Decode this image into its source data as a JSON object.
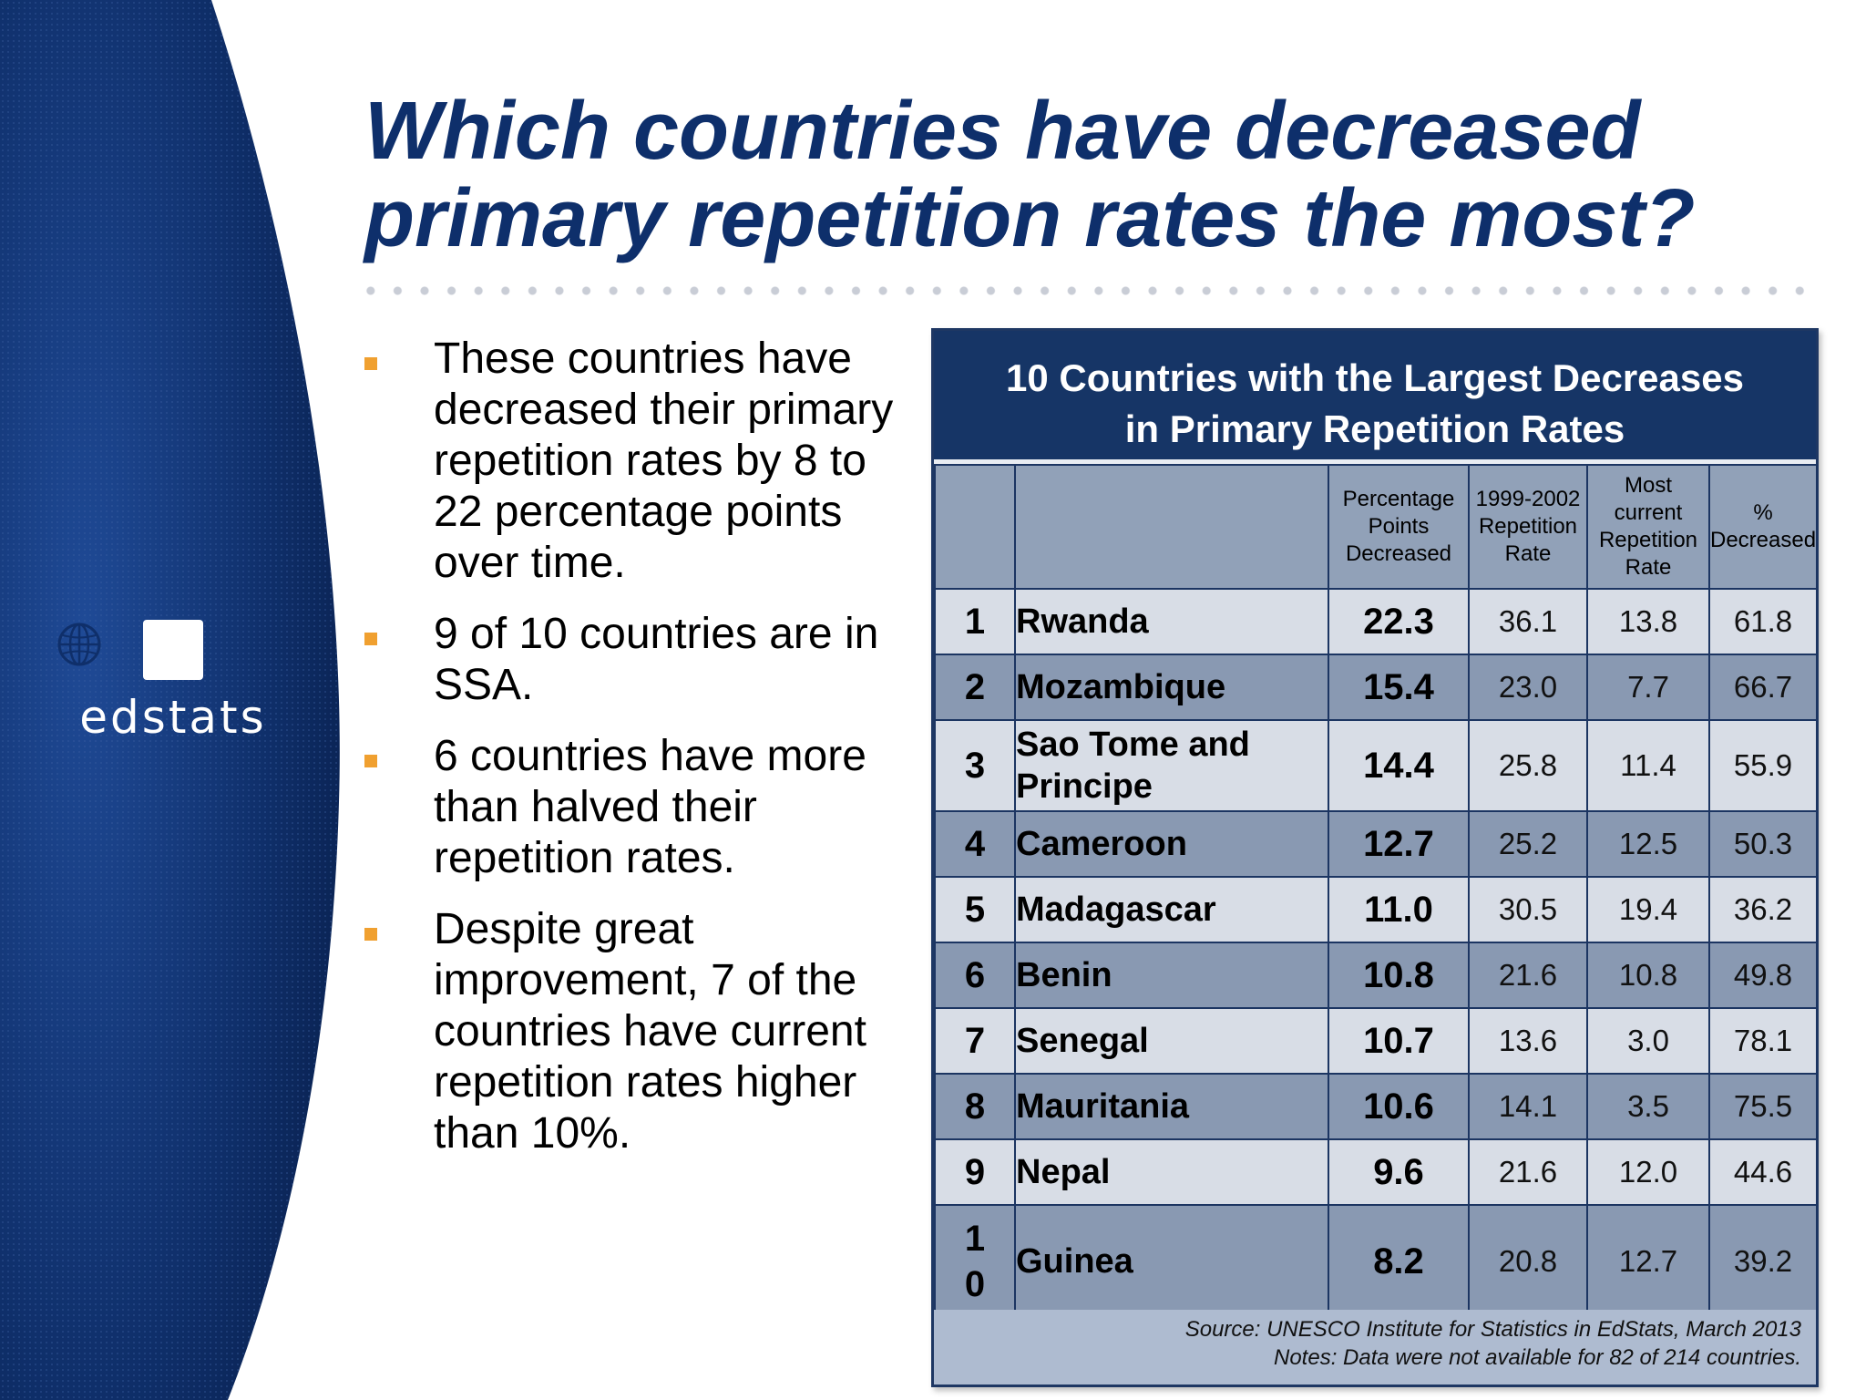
{
  "slide": {
    "title_line1": "Which countries have decreased",
    "title_line2": "primary repetition rates the most?",
    "logo_text": "edstats",
    "logo_icon": "globe-icon",
    "colors": {
      "title": "#0e2f6b",
      "bullet": "#f0a030",
      "table_header": "#163566",
      "left_panel": "#0f2f6a"
    }
  },
  "bullets": [
    "These countries have decreased their primary repetition rates by 8 to 22 percentage points over time.",
    "9 of 10 countries are in SSA.",
    "6 countries have more than halved their repetition rates.",
    "Despite great improvement, 7 of the countries have current repetition rates higher than 10%."
  ],
  "table": {
    "title_line1": "10 Countries with the Largest Decreases",
    "title_line2": "in Primary Repetition Rates",
    "columns": [
      "",
      "",
      "Percentage Points Decreased",
      "1999-2002 Repetition Rate",
      "Most current Repetition Rate",
      "% Decreased"
    ],
    "rows": [
      {
        "rank": "1",
        "country": "Rwanda",
        "pp": "22.3",
        "r1999": "36.1",
        "current": "13.8",
        "pct": "61.8"
      },
      {
        "rank": "2",
        "country": "Mozambique",
        "pp": "15.4",
        "r1999": "23.0",
        "current": "7.7",
        "pct": "66.7"
      },
      {
        "rank": "3",
        "country": "Sao Tome and Principe",
        "pp": "14.4",
        "r1999": "25.8",
        "current": "11.4",
        "pct": "55.9"
      },
      {
        "rank": "4",
        "country": "Cameroon",
        "pp": "12.7",
        "r1999": "25.2",
        "current": "12.5",
        "pct": "50.3"
      },
      {
        "rank": "5",
        "country": "Madagascar",
        "pp": "11.0",
        "r1999": "30.5",
        "current": "19.4",
        "pct": "36.2"
      },
      {
        "rank": "6",
        "country": "Benin",
        "pp": "10.8",
        "r1999": "21.6",
        "current": "10.8",
        "pct": "49.8"
      },
      {
        "rank": "7",
        "country": "Senegal",
        "pp": "10.7",
        "r1999": "13.6",
        "current": "3.0",
        "pct": "78.1"
      },
      {
        "rank": "8",
        "country": "Mauritania",
        "pp": "10.6",
        "r1999": "14.1",
        "current": "3.5",
        "pct": "75.5"
      },
      {
        "rank": "9",
        "country": "Nepal",
        "pp": "9.6",
        "r1999": "21.6",
        "current": "12.0",
        "pct": "44.6"
      },
      {
        "rank": "10",
        "country": "Guinea",
        "pp": "8.2",
        "r1999": "20.8",
        "current": "12.7",
        "pct": "39.2"
      }
    ],
    "source": "Source: UNESCO Institute for Statistics in EdStats, March 2013",
    "notes": "Notes: Data were not available for 82 of 214 countries."
  }
}
